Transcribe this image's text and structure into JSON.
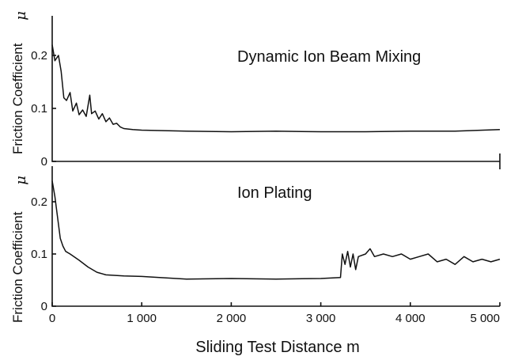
{
  "chart_data": [
    {
      "type": "line",
      "title": "Dynamic Ion Beam Mixing",
      "ylabel": "Friction Coefficient",
      "ylabel_symbol": "μ",
      "xlabel": "",
      "xlim": [
        0,
        5000
      ],
      "ylim": [
        0,
        0.25
      ],
      "yticks": [
        0,
        0.1,
        0.2
      ],
      "ytick_labels": [
        "0",
        "0.1",
        "0.2"
      ],
      "grid": false,
      "series": [
        {
          "values_xy": [
            [
              0,
              0.22
            ],
            [
              30,
              0.19
            ],
            [
              70,
              0.2
            ],
            [
              100,
              0.17
            ],
            [
              130,
              0.12
            ],
            [
              160,
              0.115
            ],
            [
              200,
              0.13
            ],
            [
              230,
              0.095
            ],
            [
              270,
              0.11
            ],
            [
              300,
              0.088
            ],
            [
              340,
              0.097
            ],
            [
              380,
              0.085
            ],
            [
              420,
              0.125
            ],
            [
              440,
              0.09
            ],
            [
              480,
              0.095
            ],
            [
              520,
              0.08
            ],
            [
              560,
              0.09
            ],
            [
              600,
              0.075
            ],
            [
              640,
              0.082
            ],
            [
              680,
              0.07
            ],
            [
              720,
              0.072
            ],
            [
              760,
              0.065
            ],
            [
              800,
              0.062
            ],
            [
              900,
              0.06
            ],
            [
              1000,
              0.059
            ],
            [
              1500,
              0.057
            ],
            [
              2000,
              0.056
            ],
            [
              2500,
              0.057
            ],
            [
              3000,
              0.056
            ],
            [
              3500,
              0.056
            ],
            [
              4000,
              0.057
            ],
            [
              4500,
              0.057
            ],
            [
              5000,
              0.06
            ]
          ]
        }
      ]
    },
    {
      "type": "line",
      "title": "Ion Plating",
      "ylabel": "Friction Coefficient",
      "ylabel_symbol": "μ",
      "xlabel": "Sliding Test Distance  m",
      "xlim": [
        0,
        5000
      ],
      "ylim": [
        0,
        0.25
      ],
      "yticks": [
        0,
        0.1,
        0.2
      ],
      "ytick_labels": [
        "0",
        "0.1",
        "0.2"
      ],
      "xticks": [
        0,
        1000,
        2000,
        3000,
        4000,
        5000
      ],
      "xtick_labels": [
        "0",
        "1 000",
        "2 000",
        "3 000",
        "4 000",
        "5 000"
      ],
      "grid": false,
      "series": [
        {
          "values_xy": [
            [
              0,
              0.24
            ],
            [
              30,
              0.21
            ],
            [
              60,
              0.17
            ],
            [
              90,
              0.13
            ],
            [
              120,
              0.115
            ],
            [
              150,
              0.105
            ],
            [
              200,
              0.1
            ],
            [
              300,
              0.088
            ],
            [
              400,
              0.075
            ],
            [
              500,
              0.065
            ],
            [
              600,
              0.06
            ],
            [
              800,
              0.058
            ],
            [
              1000,
              0.057
            ],
            [
              1200,
              0.055
            ],
            [
              1500,
              0.052
            ],
            [
              2000,
              0.053
            ],
            [
              2500,
              0.052
            ],
            [
              3000,
              0.053
            ],
            [
              3220,
              0.055
            ],
            [
              3240,
              0.1
            ],
            [
              3270,
              0.08
            ],
            [
              3300,
              0.105
            ],
            [
              3330,
              0.075
            ],
            [
              3360,
              0.1
            ],
            [
              3390,
              0.07
            ],
            [
              3420,
              0.095
            ],
            [
              3500,
              0.1
            ],
            [
              3550,
              0.11
            ],
            [
              3600,
              0.095
            ],
            [
              3700,
              0.1
            ],
            [
              3800,
              0.095
            ],
            [
              3900,
              0.1
            ],
            [
              4000,
              0.09
            ],
            [
              4100,
              0.095
            ],
            [
              4200,
              0.1
            ],
            [
              4300,
              0.085
            ],
            [
              4400,
              0.09
            ],
            [
              4500,
              0.08
            ],
            [
              4600,
              0.095
            ],
            [
              4700,
              0.085
            ],
            [
              4800,
              0.09
            ],
            [
              4900,
              0.085
            ],
            [
              5000,
              0.09
            ]
          ]
        }
      ]
    }
  ]
}
